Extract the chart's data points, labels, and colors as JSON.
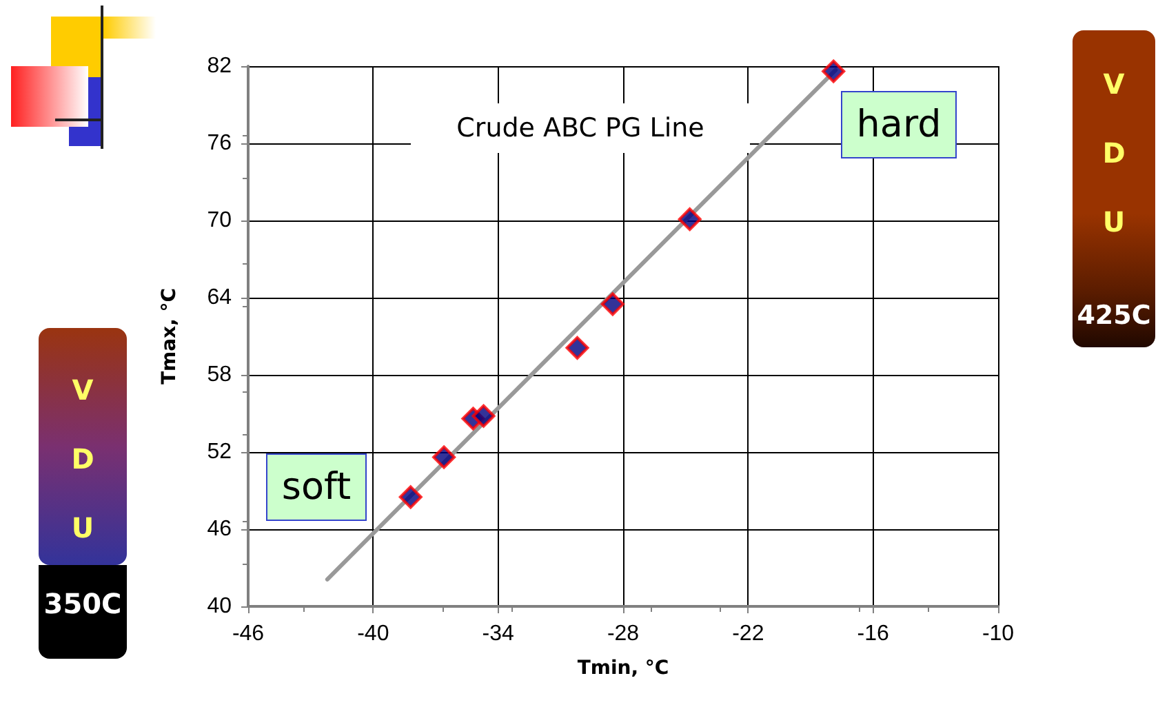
{
  "chart_data": {
    "type": "scatter",
    "xlabel": "Tmin, °C",
    "ylabel": "Tmax, °C",
    "xlim": [
      -46,
      -10
    ],
    "xticks": [
      -46,
      -40,
      -34,
      -28,
      -22,
      -16,
      -10
    ],
    "ylim": [
      40,
      82
    ],
    "yticks": [
      40,
      46,
      52,
      58,
      64,
      70,
      76,
      82
    ],
    "grid": true,
    "marker": "diamond",
    "series": [
      {
        "type": "line",
        "color": "#999999",
        "marker": "none",
        "x": [
          -42.2,
          -17.8
        ],
        "values": [
          42.1,
          81.7
        ]
      },
      {
        "type": "scatter",
        "color": "#000080",
        "x": [
          -38.2,
          -36.6,
          -35.2,
          -34.7,
          -30.2,
          -28.5,
          -24.8,
          -17.9
        ],
        "values": [
          48.5,
          51.6,
          54.6,
          54.8,
          60.1,
          63.5,
          70.1,
          81.6
        ]
      }
    ],
    "annotations": [
      "Crude ABC PG Line",
      "soft",
      "hard",
      "VDU",
      "350C",
      "VDU",
      "425C"
    ]
  }
}
